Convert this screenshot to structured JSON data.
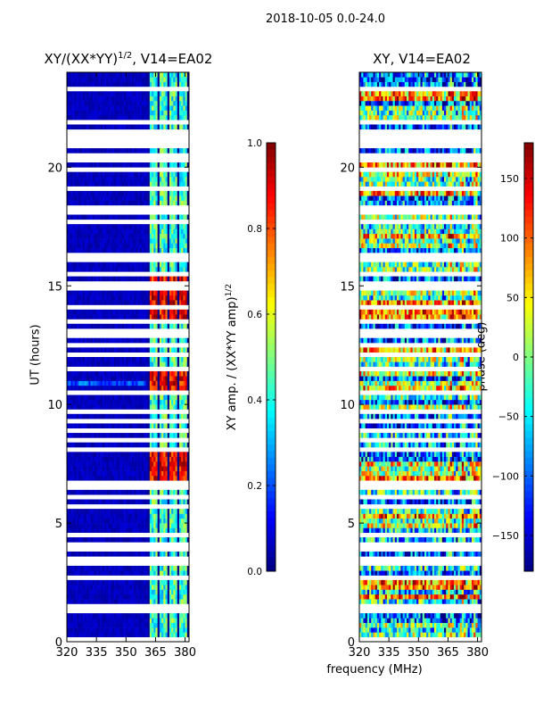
{
  "figure": {
    "suptitle": "2018-10-05 0.0-24.0",
    "xlabel": "frequency (MHz)"
  },
  "chart_data": [
    {
      "type": "heatmap",
      "title_main": "XY/(XX*YY)",
      "title_exp": "1/2",
      "title_tail": ", V14=EA02",
      "ylabel": "UT (hours)",
      "xlim": [
        320,
        382
      ],
      "ylim": [
        0,
        24
      ],
      "xticks": [
        320,
        335,
        350,
        365,
        380
      ],
      "yticks": [
        0,
        5,
        10,
        15,
        20
      ],
      "colorbar": {
        "label_main": "XY amp. / (XX*YY amp)",
        "label_exp": "1/2",
        "range": [
          0.0,
          1.0
        ],
        "ticks": [
          "0.0",
          "0.2",
          "0.4",
          "0.6",
          "0.8",
          "1.0"
        ],
        "colormap": "jet"
      },
      "pattern": "low amplitude (~0.05) for 320–360 MHz; channelized high-amplitude stripes (~0.3–0.6) for 360–382 MHz; bright bands (~0.8–1.0) near 6.5–8, 10.5–11.3, 13.5–15.5 UT"
    },
    {
      "type": "heatmap",
      "title": "XY, V14=EA02",
      "xlim": [
        320,
        382
      ],
      "ylim": [
        0,
        24
      ],
      "xticks": [
        320,
        335,
        350,
        365,
        380
      ],
      "yticks": [
        0,
        5,
        10,
        15,
        20
      ],
      "colorbar": {
        "label": "phase (deg)",
        "range": [
          -180,
          180
        ],
        "ticks": [
          "150",
          "100",
          "50",
          "0",
          "−50",
          "−100",
          "−150"
        ],
        "colormap": "jet"
      },
      "pattern": "noisy phase spanning full range; broad horizontal structures varying with time"
    }
  ],
  "gaps_hours": [
    0.1,
    0.4,
    0.8,
    1.25,
    1.5,
    1.55,
    2.0,
    2.4,
    2.65,
    3.2,
    3.3,
    3.45,
    3.95,
    4.15,
    4.55,
    4.8,
    5.2,
    5.6,
    5.75,
    6.1,
    6.5,
    6.65,
    7.0,
    7.4,
    8.15,
    8.45,
    8.95,
    9.25,
    9.6,
    9.75,
    10.2,
    10.45,
    11.5,
    11.8,
    12.05,
    12.4,
    12.55,
    12.95,
    13.05,
    13.45,
    14.05,
    14.85,
    15.15,
    15.55,
    16.05,
    16.25,
    16.6,
    17.2,
    17.6,
    17.7,
    18.05,
    18.3,
    18.6,
    19.05,
    19.4,
    19.85,
    20.0,
    20.35,
    20.55,
    20.9,
    21.15,
    21.35,
    21.55,
    21.95,
    22.4,
    22.6,
    23.0,
    23.3,
    23.8
  ]
}
